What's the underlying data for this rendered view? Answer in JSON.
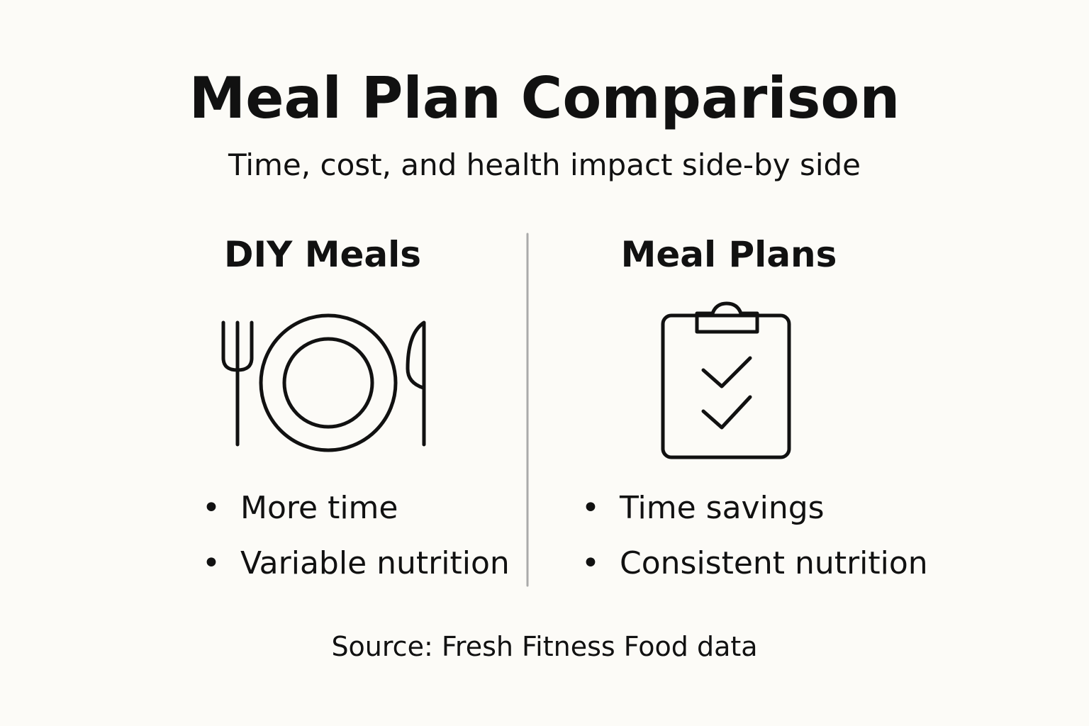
{
  "header": {
    "title": "Meal Plan Comparison",
    "subtitle": "Time, cost, and health impact side-by side"
  },
  "columns": [
    {
      "heading": "DIY Meals",
      "points": [
        "More time",
        "Variable nutrition"
      ]
    },
    {
      "heading": "Meal Plans",
      "points": [
        "Time savings",
        "Consistent nutrition"
      ]
    }
  ],
  "footer": {
    "source": "Source: Fresh Fitness Food data"
  }
}
